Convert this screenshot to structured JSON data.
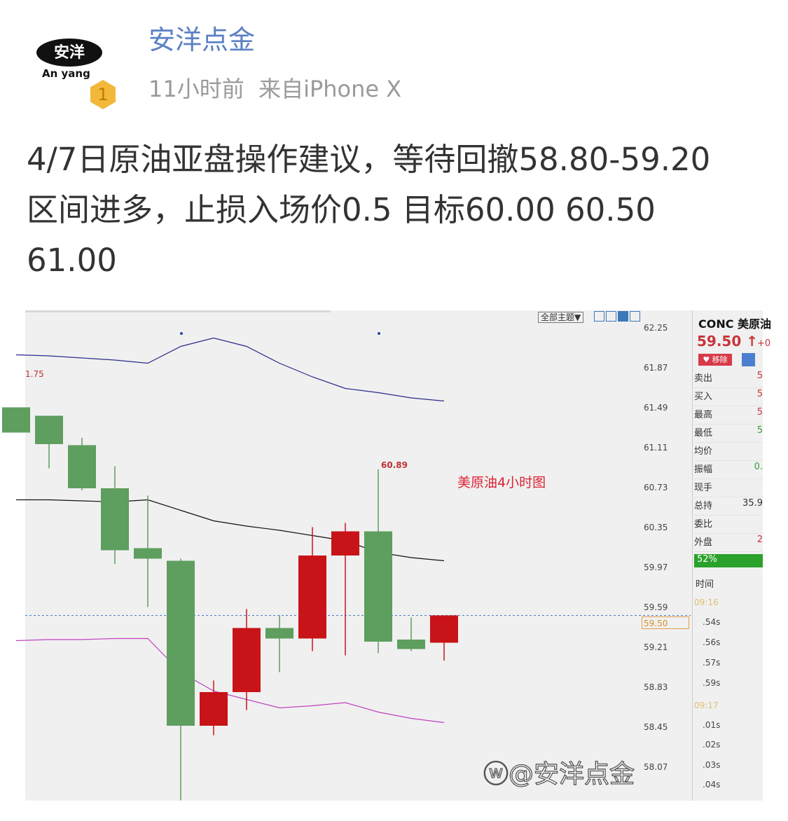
{
  "post": {
    "author": "安洋点金",
    "logo_text": "安洋",
    "logo_sub": "An yang",
    "badge": "1",
    "meta": "11小时前  来自iPhone X",
    "lines": [
      "4/7日原油亚盘操作建议，等待回撤58.80-59.20",
      "区间进多，止损入场价0.5  目标60.00  60.50",
      "61.00"
    ]
  },
  "chart": {
    "toolbar_label": "全部主题▼",
    "annotation": "美原油4小时图",
    "high_label": "60.89",
    "left_label": "1.75",
    "current_price_tag": "59.50",
    "price_ticks": [
      "62.25",
      "61.87",
      "61.49",
      "61.11",
      "60.73",
      "60.35",
      "59.97",
      "59.59",
      "59.21",
      "58.83",
      "58.45",
      "58.07"
    ],
    "colors": {
      "up": "#c81418",
      "down": "#5e9e5e",
      "upper_band": "#2a2a8a",
      "middle_band": "#111111",
      "lower_band": "#c040c0"
    },
    "candles": [
      {
        "o": 61.48,
        "h": 61.48,
        "l": 61.24,
        "c": 61.24
      },
      {
        "o": 61.4,
        "h": 61.4,
        "l": 60.9,
        "c": 61.13
      },
      {
        "o": 61.12,
        "h": 61.19,
        "l": 60.69,
        "c": 60.71
      },
      {
        "o": 60.71,
        "h": 60.92,
        "l": 59.99,
        "c": 60.12
      },
      {
        "o": 60.14,
        "h": 60.64,
        "l": 59.58,
        "c": 60.04
      },
      {
        "o": 60.02,
        "h": 60.04,
        "l": 57.74,
        "c": 58.45
      },
      {
        "o": 58.45,
        "h": 58.88,
        "l": 58.36,
        "c": 58.77
      },
      {
        "o": 58.77,
        "h": 59.56,
        "l": 58.6,
        "c": 59.38
      },
      {
        "o": 59.38,
        "h": 59.5,
        "l": 58.96,
        "c": 59.28
      },
      {
        "o": 59.28,
        "h": 60.34,
        "l": 59.16,
        "c": 60.07
      },
      {
        "o": 60.07,
        "h": 60.38,
        "l": 59.12,
        "c": 60.3
      },
      {
        "o": 60.3,
        "h": 60.89,
        "l": 59.14,
        "c": 59.25
      },
      {
        "o": 59.27,
        "h": 59.48,
        "l": 59.16,
        "c": 59.18
      },
      {
        "o": 59.24,
        "h": 59.49,
        "l": 59.07,
        "c": 59.5
      }
    ],
    "upper": [
      61.98,
      61.97,
      61.95,
      61.93,
      61.9,
      62.06,
      62.14,
      62.06,
      61.9,
      61.77,
      61.66,
      61.62,
      61.57,
      61.54
    ],
    "middle": [
      60.6,
      60.6,
      60.59,
      60.58,
      60.6,
      60.5,
      60.4,
      60.35,
      60.31,
      60.26,
      60.21,
      60.1,
      60.05,
      60.02
    ],
    "lower": [
      59.26,
      59.27,
      59.27,
      59.28,
      59.28,
      58.96,
      58.78,
      58.7,
      58.62,
      58.64,
      58.67,
      58.58,
      58.52,
      58.48
    ]
  },
  "panel": {
    "symbol": "CONC 美原油",
    "price": "59.50 ↑",
    "change": "+0",
    "remove_label": "♥ 移除",
    "rows": [
      {
        "k": "卖出",
        "v": "5"
      },
      {
        "k": "买入",
        "v": "5"
      },
      {
        "k": "最高",
        "v": "5"
      },
      {
        "k": "最低",
        "v": "5"
      },
      {
        "k": "均价",
        "v": ""
      },
      {
        "k": "振幅",
        "v": "0."
      },
      {
        "k": "现手",
        "v": ""
      },
      {
        "k": "总持",
        "v": "35.9"
      },
      {
        "k": "委比",
        "v": ""
      },
      {
        "k": "外盘",
        "v": "2"
      }
    ],
    "ratio": "52%",
    "ratio_value": 52,
    "time_header": "时间",
    "times": [
      "09:16",
      ".54s",
      ".56s",
      ".57s",
      ".59s",
      "09:17",
      ".01s",
      ".02s",
      ".03s",
      ".04s"
    ]
  },
  "watermark": "@安洋点金"
}
